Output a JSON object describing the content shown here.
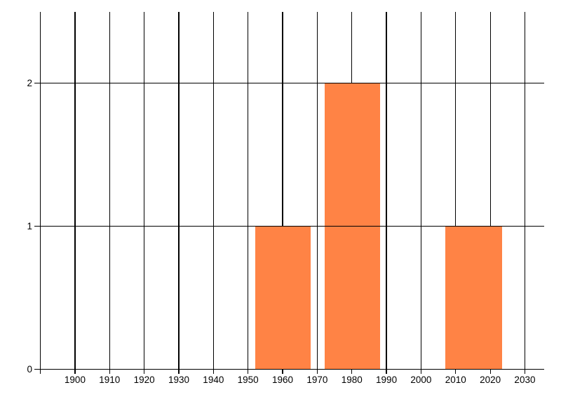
{
  "window": {
    "background": "#ffffff"
  },
  "chart_data": {
    "type": "bar",
    "title": "",
    "xlabel": "",
    "ylabel": "",
    "grid": "on",
    "legend": "none",
    "x_axis": {
      "gridline_years": [
        1890,
        1900,
        1910,
        1920,
        1930,
        1940,
        1950,
        1960,
        1970,
        1980,
        1990,
        2000,
        2010,
        2020,
        2030
      ],
      "tick_years": [
        1900,
        1910,
        1920,
        1930,
        1940,
        1950,
        1960,
        1970,
        1980,
        1990,
        2000,
        2010,
        2020,
        2030
      ],
      "tick_labels": [
        "1900",
        "1910",
        "1920",
        "1930",
        "1940",
        "1950",
        "1960",
        "1970",
        "1980",
        "1990",
        "2000",
        "2010",
        "2020",
        "2030"
      ],
      "range_years": [
        1888.3,
        2035.5
      ]
    },
    "y_axis": {
      "tick_values": [
        0,
        1,
        2
      ],
      "tick_labels": [
        "0",
        "1",
        "2"
      ],
      "range": [
        0,
        2.5
      ]
    },
    "bars": [
      {
        "x_start_year": 1952.0,
        "x_end_year": 1968.1,
        "value": 1
      },
      {
        "x_start_year": 1972.2,
        "x_end_year": 1988.1,
        "value": 2
      },
      {
        "x_start_year": 2007.0,
        "x_end_year": 2023.5,
        "value": 1
      }
    ],
    "colors": {
      "bar": "#ff8345",
      "gridline": "#000000",
      "tick_label": "#000000",
      "background": "#ffffff"
    }
  }
}
